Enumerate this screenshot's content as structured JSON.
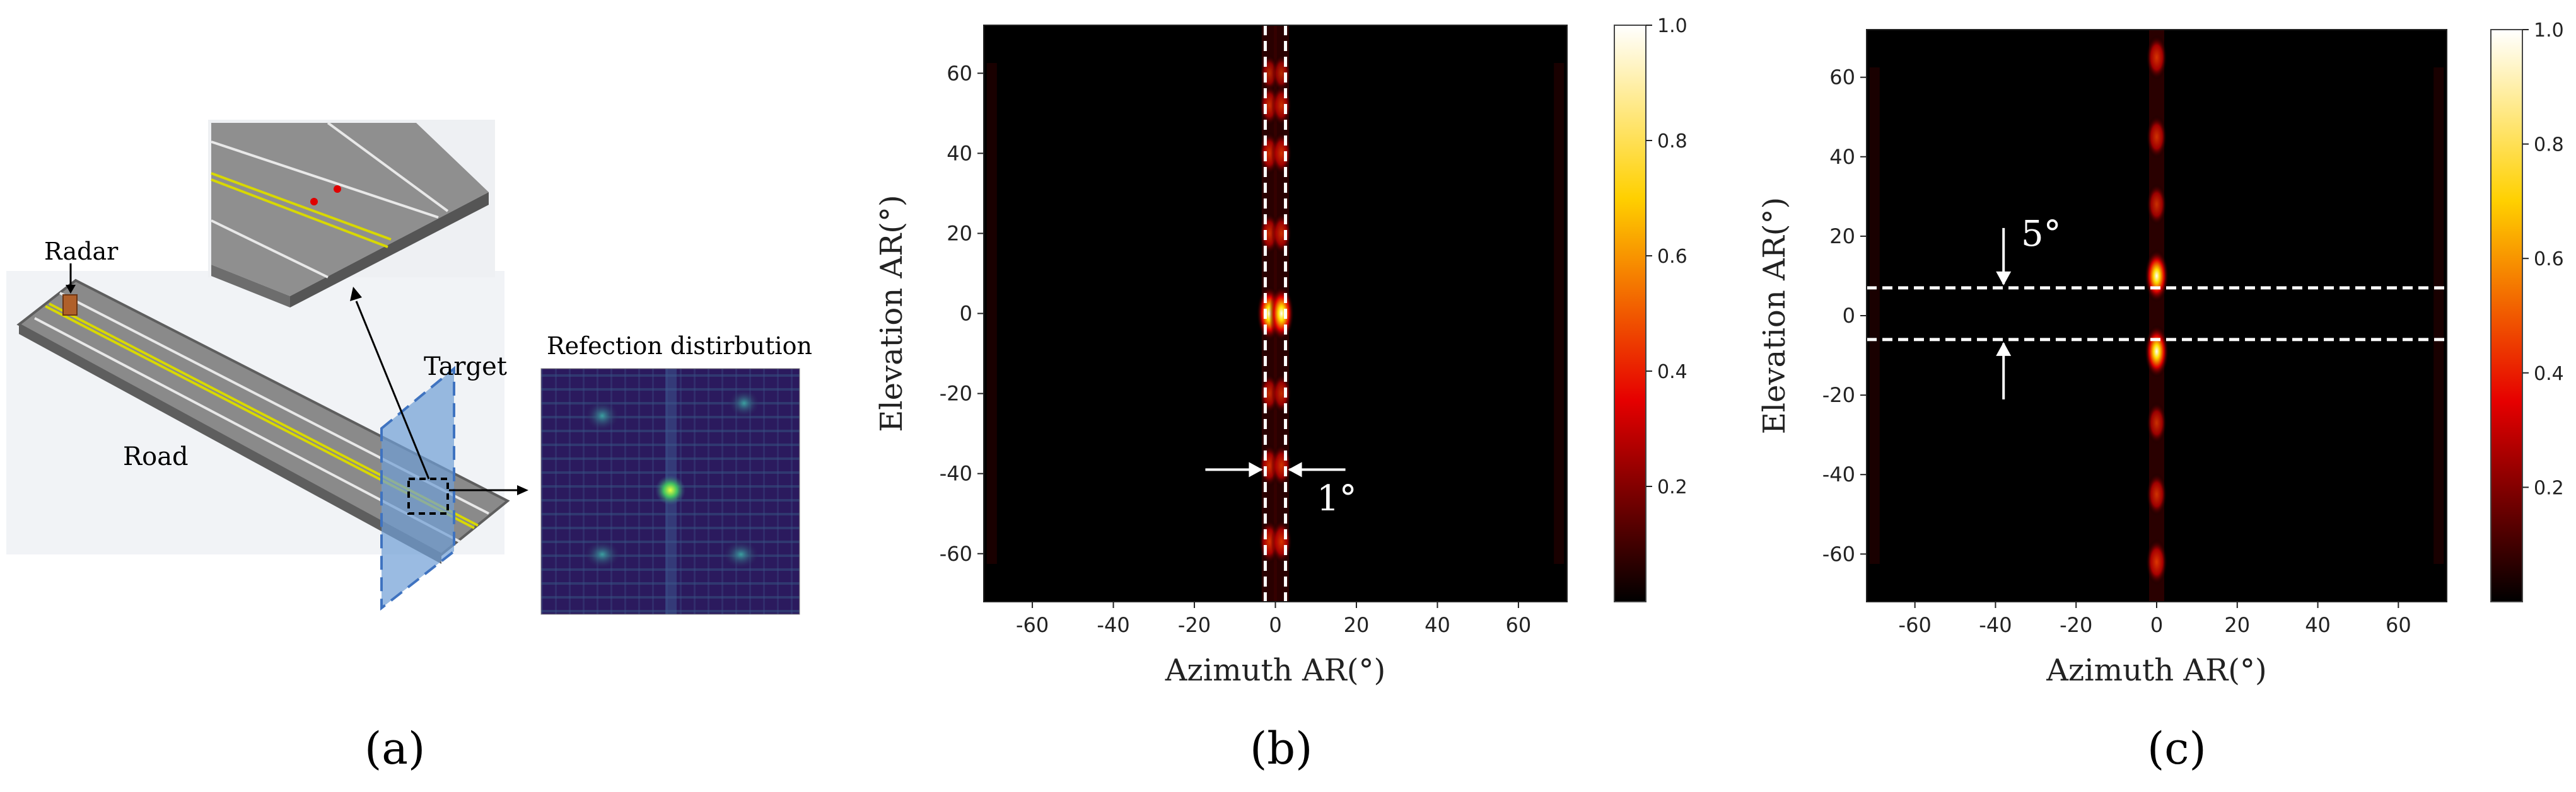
{
  "panel_a": {
    "radar_label": "Radar",
    "road_label": "Road",
    "target_label": "Target",
    "reflection_title": "Refection distirbution",
    "caption": "(a)"
  },
  "panel_b": {
    "caption": "(b)",
    "annotation": "1°"
  },
  "panel_c": {
    "caption": "(c)",
    "annotation": "5°"
  },
  "colors": {
    "road": "#8a8a8a",
    "road_edge": "#5e5e5e",
    "lane_yellow": "#d8d800",
    "target_plane": "#6f9ed6",
    "heatmap_bg": "#2b0f53"
  },
  "chart_data": [
    {
      "type": "heatmap",
      "panel": "b",
      "xlabel": "Azimuth AR(°)",
      "ylabel": "Elevation AR(°)",
      "xlim": [
        -72,
        72
      ],
      "ylim": [
        -72,
        72
      ],
      "xticks": [
        -60,
        -40,
        -20,
        0,
        20,
        40,
        60
      ],
      "yticks": [
        -60,
        -40,
        -20,
        0,
        20,
        40,
        60
      ],
      "colormap": "hot",
      "colorbar": {
        "min": 0.0,
        "max": 1.0,
        "ticks": [
          0.2,
          0.4,
          0.6,
          0.8,
          1.0
        ]
      },
      "beam_columns_deg": [
        -1.5,
        1.5
      ],
      "peaks": [
        {
          "elevation": 60,
          "intensity": 0.35
        },
        {
          "elevation": 52,
          "intensity": 0.5
        },
        {
          "elevation": 40,
          "intensity": 0.55
        },
        {
          "elevation": 20,
          "intensity": 0.5
        },
        {
          "elevation": 0,
          "intensity": 1.0
        },
        {
          "elevation": -20,
          "intensity": 0.45
        },
        {
          "elevation": -38,
          "intensity": 0.55
        },
        {
          "elevation": -57,
          "intensity": 0.6
        }
      ],
      "annotation_lines_azimuth": [
        -2.5,
        2.5
      ],
      "annotation_width_deg": 1
    },
    {
      "type": "heatmap",
      "panel": "c",
      "xlabel": "Azimuth AR(°)",
      "ylabel": "Elevation AR(°)",
      "xlim": [
        -72,
        72
      ],
      "ylim": [
        -72,
        72
      ],
      "xticks": [
        -60,
        -40,
        -20,
        0,
        20,
        40,
        60
      ],
      "yticks": [
        -60,
        -40,
        -20,
        0,
        20,
        40,
        60
      ],
      "colormap": "hot",
      "colorbar": {
        "min": 0.0,
        "max": 1.0,
        "ticks": [
          0.2,
          0.4,
          0.6,
          0.8,
          1.0
        ]
      },
      "beam_columns_deg": [
        0
      ],
      "peaks": [
        {
          "elevation": 65,
          "intensity": 0.6
        },
        {
          "elevation": 45,
          "intensity": 0.55
        },
        {
          "elevation": 28,
          "intensity": 0.5
        },
        {
          "elevation": 10,
          "intensity": 0.9
        },
        {
          "elevation": -9,
          "intensity": 0.9
        },
        {
          "elevation": -27,
          "intensity": 0.5
        },
        {
          "elevation": -45,
          "intensity": 0.55
        },
        {
          "elevation": -62,
          "intensity": 0.65
        }
      ],
      "annotation_lines_elevation": [
        7,
        -6
      ],
      "annotation_width_deg": 5
    }
  ]
}
